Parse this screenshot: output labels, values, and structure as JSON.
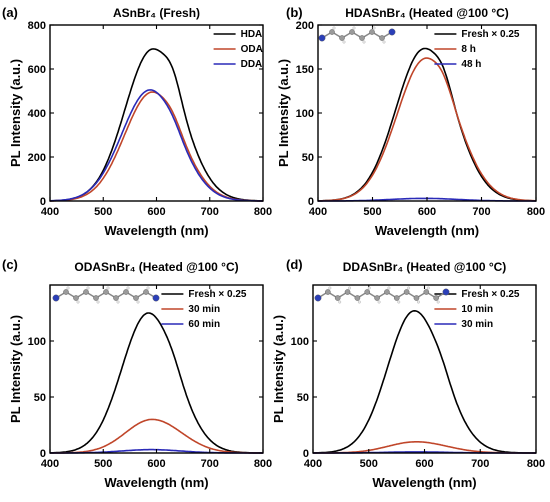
{
  "chart_data": [
    {
      "panel": "(a)",
      "type": "line",
      "title": "ASnBr₄ (Fresh)",
      "xlabel": "Wavelength (nm)",
      "ylabel": "PL Intensity (a.u.)",
      "xlim": [
        400,
        800
      ],
      "ylim": [
        0,
        800
      ],
      "xticks": [
        400,
        500,
        600,
        700,
        800
      ],
      "yticks": [
        0,
        200,
        400,
        600,
        800
      ],
      "legend_position": "top-right",
      "series": [
        {
          "name": "HDA",
          "color": "#000000",
          "peak": 690,
          "center": 593,
          "sigma_left": 52,
          "sigma_right": 55,
          "shoulder": 0.08
        },
        {
          "name": "ODA",
          "color": "#c0462a",
          "peak": 495,
          "center": 592,
          "sigma_left": 52,
          "sigma_right": 54,
          "shoulder": 0.04
        },
        {
          "name": "DDA",
          "color": "#2a2ab8",
          "peak": 505,
          "center": 588,
          "sigma_left": 53,
          "sigma_right": 54,
          "shoulder": 0.03
        }
      ]
    },
    {
      "panel": "(b)",
      "type": "line",
      "title": "HDASnBr₄ (Heated @100 °C)",
      "xlabel": "Wavelength (nm)",
      "ylabel": "PL Intensity (a.u.)",
      "xlim": [
        400,
        800
      ],
      "ylim": [
        0,
        200
      ],
      "xticks": [
        400,
        500,
        600,
        700,
        800
      ],
      "yticks": [
        0,
        50,
        100,
        150,
        200
      ],
      "legend_position": "top-right",
      "series": [
        {
          "name": "Fresh × 0.25",
          "color": "#000000",
          "peak": 173,
          "center": 595,
          "sigma_left": 52,
          "sigma_right": 55,
          "shoulder": 0.06
        },
        {
          "name": "8 h",
          "color": "#c0462a",
          "peak": 162,
          "center": 598,
          "sigma_left": 53,
          "sigma_right": 56,
          "shoulder": 0.04
        },
        {
          "name": "48 h",
          "color": "#2a2ab8",
          "peak": 3,
          "center": 595,
          "sigma_left": 60,
          "sigma_right": 60,
          "shoulder": 0
        }
      ]
    },
    {
      "panel": "(c)",
      "type": "line",
      "title": "ODASnBr₄ (Heated @100 °C)",
      "xlabel": "Wavelength (nm)",
      "ylabel": "PL Intensity (a.u.)",
      "xlim": [
        400,
        800
      ],
      "ylim": [
        0,
        150
      ],
      "xticks": [
        400,
        500,
        600,
        700,
        800
      ],
      "yticks": [
        0,
        50,
        100
      ],
      "legend_position": "top-right",
      "series": [
        {
          "name": "Fresh × 0.25",
          "color": "#000000",
          "peak": 125,
          "center": 585,
          "sigma_left": 50,
          "sigma_right": 53,
          "shoulder": 0.03
        },
        {
          "name": "30 min",
          "color": "#c0462a",
          "peak": 30,
          "center": 592,
          "sigma_left": 50,
          "sigma_right": 55,
          "shoulder": 0
        },
        {
          "name": "60 min",
          "color": "#2a2ab8",
          "peak": 3,
          "center": 590,
          "sigma_left": 55,
          "sigma_right": 55,
          "shoulder": 0
        }
      ]
    },
    {
      "panel": "(d)",
      "type": "line",
      "title": "DDASnBr₄ (Heated @100 °C)",
      "xlabel": "Wavelength (nm)",
      "ylabel": "PL Intensity (a.u.)",
      "xlim": [
        400,
        800
      ],
      "ylim": [
        0,
        150
      ],
      "xticks": [
        400,
        500,
        600,
        700,
        800
      ],
      "yticks": [
        0,
        50,
        100
      ],
      "legend_position": "top-right",
      "series": [
        {
          "name": "Fresh × 0.25",
          "color": "#000000",
          "peak": 127,
          "center": 582,
          "sigma_left": 48,
          "sigma_right": 52,
          "shoulder": 0.03
        },
        {
          "name": "10 min",
          "color": "#c0462a",
          "peak": 10,
          "center": 585,
          "sigma_left": 50,
          "sigma_right": 55,
          "shoulder": 0
        },
        {
          "name": "30 min",
          "color": "#2a2ab8",
          "peak": 1,
          "center": 585,
          "sigma_left": 55,
          "sigma_right": 55,
          "shoulder": 0
        }
      ]
    }
  ]
}
